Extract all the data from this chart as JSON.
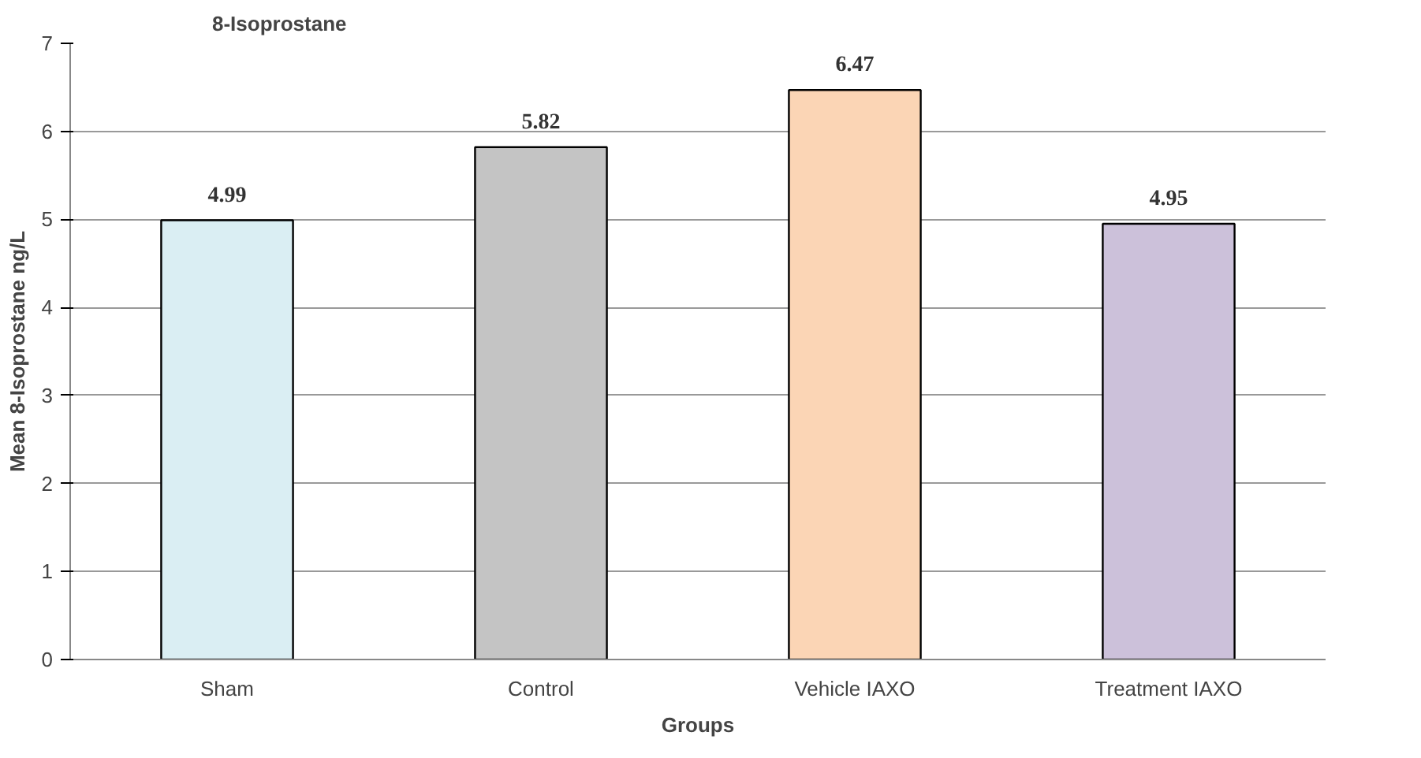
{
  "chart_data": {
    "type": "bar",
    "title": "8-Isoprostane",
    "xlabel": "Groups",
    "ylabel": "Mean 8-Isoprostane ng/L",
    "categories": [
      "Sham",
      "Control",
      "Vehicle IAXO",
      "Treatment IAXO"
    ],
    "values": [
      4.99,
      5.82,
      6.47,
      4.95
    ],
    "colors": [
      "#daeef3",
      "#c4c4c4",
      "#fbd5b5",
      "#ccc1da"
    ],
    "ylim": [
      0,
      7
    ],
    "yticks": [
      0,
      1,
      2,
      3,
      4,
      5,
      6,
      7
    ],
    "grid": "y",
    "data_labels": true
  }
}
